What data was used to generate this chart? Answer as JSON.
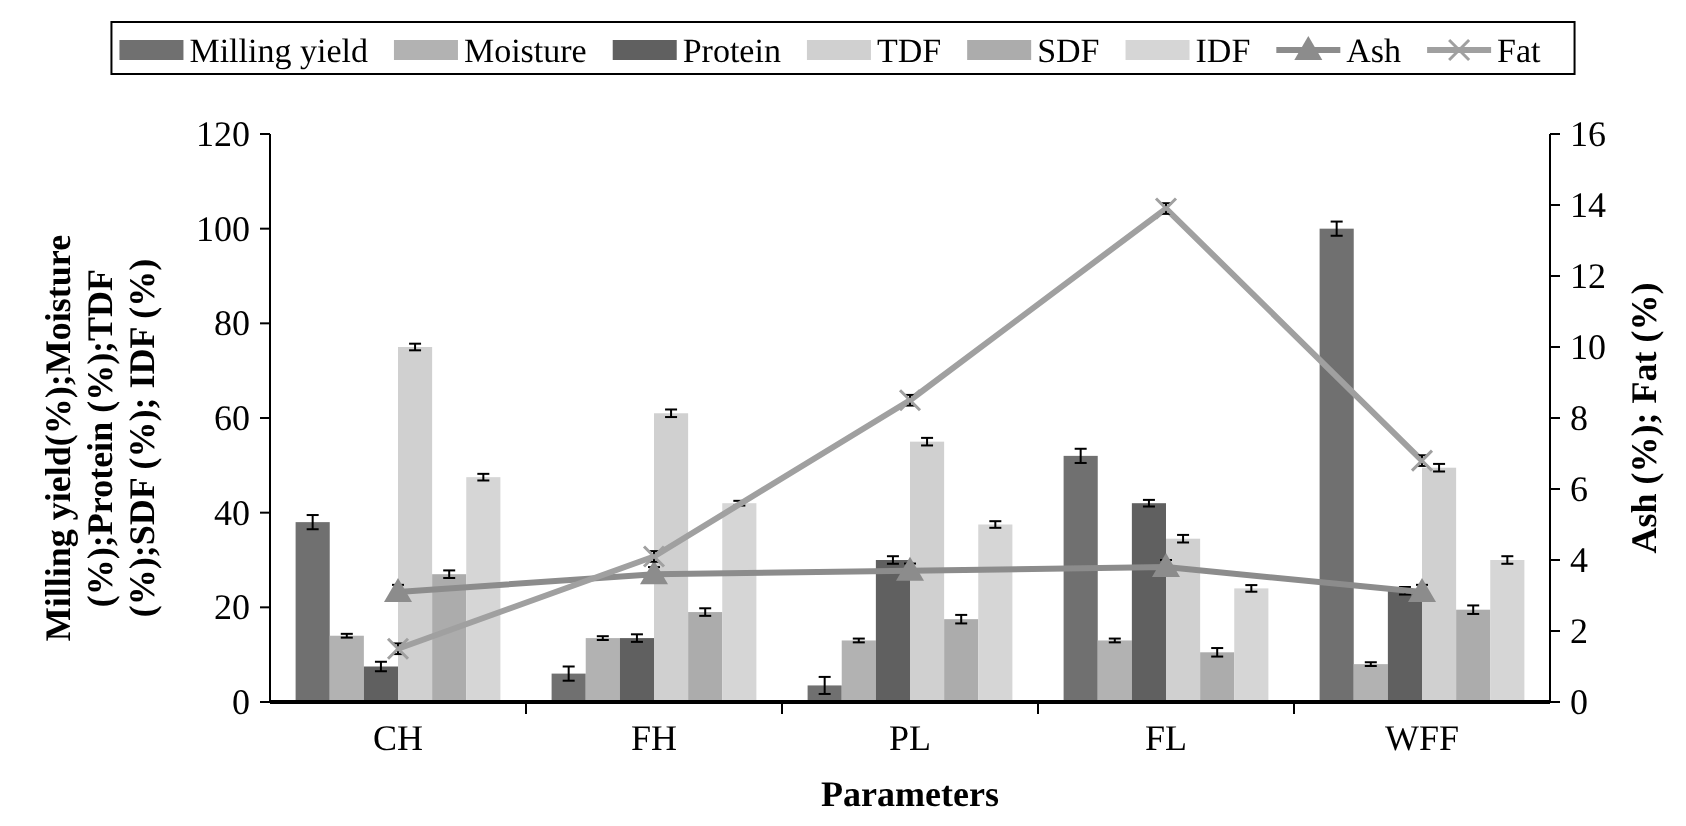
{
  "chart_data": {
    "type": "bar",
    "xlabel": "Parameters",
    "ylabel": "Milling yield(%);Moisture (%);Protein (%);TDF (%);SDF (%); IDF (%)",
    "y2label": "Ash (%); Fat (%)",
    "categories": [
      "CH",
      "FH",
      "PL",
      "FL",
      "WFF"
    ],
    "series": [
      {
        "name": "Milling yield",
        "color": "#707070",
        "values": [
          38,
          6,
          3.5,
          52,
          100
        ],
        "errors": [
          1.5,
          1.5,
          1.8,
          1.5,
          1.5
        ]
      },
      {
        "name": "Moisture",
        "color": "#b2b2b2",
        "values": [
          14,
          13.5,
          13,
          13,
          8
        ],
        "errors": [
          0.4,
          0.4,
          0.4,
          0.4,
          0.4
        ]
      },
      {
        "name": "Protein",
        "color": "#606060",
        "values": [
          7.5,
          13.5,
          30,
          42,
          23.5
        ],
        "errors": [
          1,
          0.8,
          0.8,
          0.7,
          0.8
        ]
      },
      {
        "name": "TDF",
        "color": "#d0d0d0",
        "values": [
          75,
          61,
          55,
          34.5,
          49.5
        ],
        "errors": [
          0.7,
          0.8,
          0.8,
          0.8,
          0.8
        ]
      },
      {
        "name": "SDF",
        "color": "#acacac",
        "values": [
          27,
          19,
          17.5,
          10.5,
          19.5
        ],
        "errors": [
          0.8,
          0.8,
          0.9,
          0.9,
          0.9
        ]
      },
      {
        "name": "IDF",
        "color": "#d6d6d6",
        "values": [
          47.5,
          42,
          37.5,
          24,
          30
        ],
        "errors": [
          0.7,
          0.5,
          0.7,
          0.7,
          0.8
        ]
      },
      {
        "name": "Ash",
        "type": "line",
        "axis": "y2",
        "marker": "triangle",
        "color": "#8c8c8c",
        "values": [
          3.1,
          3.6,
          3.7,
          3.8,
          3.1
        ],
        "errors": [
          0.2,
          0.2,
          0.2,
          0.2,
          0.2
        ]
      },
      {
        "name": "Fat",
        "type": "line",
        "axis": "y2",
        "marker": "cross",
        "color": "#a0a0a0",
        "values": [
          1.5,
          4.1,
          8.5,
          13.9,
          6.8
        ],
        "errors": [
          0.15,
          0.15,
          0.15,
          0.15,
          0.15
        ]
      }
    ],
    "ylim": [
      0,
      120
    ],
    "yticks": [
      0,
      20,
      40,
      60,
      80,
      100,
      120
    ],
    "y2lim": [
      0,
      16
    ],
    "y2ticks": [
      0,
      2,
      4,
      6,
      8,
      10,
      12,
      14,
      16
    ],
    "grid": false,
    "legend": "top"
  }
}
